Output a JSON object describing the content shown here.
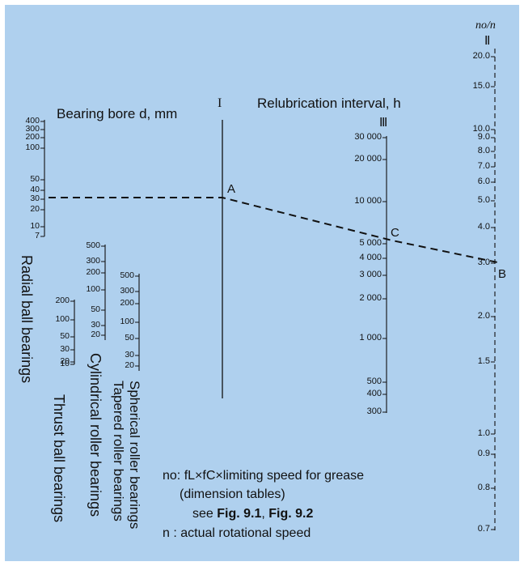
{
  "titles": {
    "bore": "Bearing bore d, mm",
    "relub": "Relubrication interval, h",
    "ratio": "no/n"
  },
  "axis_marks": {
    "I": "I",
    "II": "Ⅱ",
    "III": "Ⅲ"
  },
  "point_labels": {
    "A": "A",
    "B": "B",
    "C": "C"
  },
  "scales": {
    "radial_ball": [
      "400",
      "300",
      "200",
      "100",
      "50",
      "40",
      "30",
      "20",
      "10",
      "7"
    ],
    "thrust_ball": [
      "200",
      "100",
      "50",
      "30",
      "20",
      "10"
    ],
    "cylindrical_roller": [
      "500",
      "300",
      "200",
      "100",
      "50",
      "30",
      "20"
    ],
    "spherical_tapered_roller": [
      "500",
      "300",
      "200",
      "100",
      "50",
      "30",
      "20"
    ],
    "relubrication_interval": [
      "30 000",
      "20 000",
      "10 000",
      "5 000",
      "4 000",
      "3 000",
      "2 000",
      "1 000",
      "500",
      "400",
      "300"
    ],
    "speed_ratio": [
      "20.0",
      "15.0",
      "10.0",
      "9.0",
      "8.0",
      "7.0",
      "6.0",
      "5.0",
      "4.0",
      "3.0",
      "2.0",
      "1.5",
      "1.0",
      "0.9",
      "0.8",
      "0.7"
    ]
  },
  "bearing_types": {
    "radial_ball": "Radial ball bearings",
    "thrust_ball": "Thrust ball bearings",
    "cylindrical_roller": "Cylindrical roller bearings",
    "tapered_roller": "Tapered roller bearings",
    "spherical_roller": "Spherical roller bearings"
  },
  "notes": {
    "line1": "no: fL×fC×limiting speed for grease",
    "line2": "(dimension tables)",
    "line3_prefix": "see ",
    "line3_fig1": "Fig. 9.1",
    "line3_sep": ", ",
    "line3_fig2": "Fig. 9.2",
    "line4": "n : actual rotational speed"
  },
  "colors": {
    "background": "#afd0ee",
    "ink": "#111111"
  }
}
